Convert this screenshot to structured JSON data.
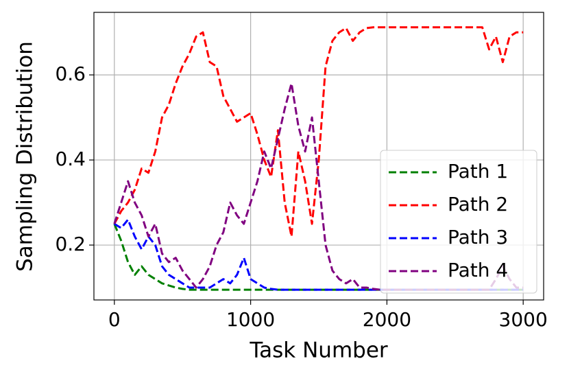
{
  "chart_data": {
    "type": "line",
    "xlabel": "Task Number",
    "ylabel": "Sampling Distribution",
    "x": [
      0,
      50,
      100,
      150,
      200,
      250,
      300,
      350,
      400,
      450,
      500,
      550,
      600,
      650,
      700,
      750,
      800,
      850,
      900,
      950,
      1000,
      1050,
      1100,
      1150,
      1200,
      1250,
      1300,
      1350,
      1400,
      1450,
      1500,
      1550,
      1600,
      1650,
      1700,
      1750,
      1800,
      1850,
      1900,
      1950,
      2000,
      2050,
      2100,
      2150,
      2200,
      2250,
      2300,
      2350,
      2400,
      2450,
      2500,
      2550,
      2600,
      2650,
      2700,
      2750,
      2800,
      2850,
      2900,
      2950,
      3000
    ],
    "series": [
      {
        "name": "Path 1",
        "color": "#008000",
        "values": [
          0.25,
          0.21,
          0.16,
          0.13,
          0.15,
          0.13,
          0.12,
          0.11,
          0.105,
          0.1,
          0.097,
          0.095,
          0.095,
          0.095,
          0.095,
          0.095,
          0.095,
          0.095,
          0.095,
          0.095,
          0.095,
          0.095,
          0.095,
          0.095,
          0.095,
          0.095,
          0.095,
          0.095,
          0.095,
          0.095,
          0.095,
          0.095,
          0.095,
          0.095,
          0.095,
          0.095,
          0.095,
          0.095,
          0.095,
          0.095,
          0.095,
          0.095,
          0.095,
          0.095,
          0.095,
          0.095,
          0.095,
          0.095,
          0.095,
          0.095,
          0.095,
          0.095,
          0.095,
          0.095,
          0.095,
          0.095,
          0.095,
          0.095,
          0.095,
          0.095,
          0.095
        ]
      },
      {
        "name": "Path 2",
        "color": "#ff0000",
        "values": [
          0.25,
          0.28,
          0.3,
          0.33,
          0.38,
          0.37,
          0.42,
          0.5,
          0.53,
          0.58,
          0.62,
          0.65,
          0.69,
          0.7,
          0.63,
          0.62,
          0.55,
          0.52,
          0.49,
          0.5,
          0.51,
          0.46,
          0.4,
          0.36,
          0.47,
          0.3,
          0.22,
          0.42,
          0.35,
          0.25,
          0.4,
          0.62,
          0.68,
          0.7,
          0.71,
          0.68,
          0.7,
          0.71,
          0.712,
          0.712,
          0.712,
          0.712,
          0.712,
          0.712,
          0.712,
          0.712,
          0.712,
          0.712,
          0.712,
          0.712,
          0.712,
          0.712,
          0.712,
          0.712,
          0.712,
          0.66,
          0.69,
          0.63,
          0.69,
          0.7,
          0.7
        ]
      },
      {
        "name": "Path 3",
        "color": "#0000ff",
        "values": [
          0.25,
          0.24,
          0.26,
          0.22,
          0.19,
          0.22,
          0.2,
          0.15,
          0.13,
          0.12,
          0.11,
          0.1,
          0.1,
          0.1,
          0.1,
          0.11,
          0.12,
          0.11,
          0.13,
          0.17,
          0.12,
          0.11,
          0.1,
          0.097,
          0.095,
          0.095,
          0.095,
          0.095,
          0.095,
          0.095,
          0.095,
          0.095,
          0.095,
          0.095,
          0.095,
          0.095,
          0.095,
          0.095,
          0.095,
          0.095,
          0.095,
          0.095,
          0.095,
          0.095,
          0.095,
          0.095,
          0.095,
          0.095,
          0.095,
          0.095,
          0.095,
          0.095,
          0.095,
          0.095,
          0.095,
          0.095,
          0.095,
          0.095,
          0.095,
          0.095,
          0.095
        ]
      },
      {
        "name": "Path 4",
        "color": "#800080",
        "values": [
          0.25,
          0.3,
          0.35,
          0.3,
          0.27,
          0.22,
          0.25,
          0.18,
          0.16,
          0.17,
          0.14,
          0.12,
          0.1,
          0.12,
          0.15,
          0.2,
          0.23,
          0.3,
          0.27,
          0.25,
          0.3,
          0.35,
          0.42,
          0.38,
          0.45,
          0.52,
          0.58,
          0.48,
          0.42,
          0.5,
          0.35,
          0.2,
          0.14,
          0.12,
          0.11,
          0.12,
          0.1,
          0.1,
          0.097,
          0.095,
          0.095,
          0.095,
          0.095,
          0.095,
          0.095,
          0.095,
          0.095,
          0.095,
          0.095,
          0.095,
          0.095,
          0.095,
          0.095,
          0.095,
          0.095,
          0.095,
          0.12,
          0.15,
          0.12,
          0.1,
          0.1
        ]
      }
    ],
    "xlim": [
      -150,
      3150
    ],
    "xticks": [
      0,
      1000,
      2000,
      3000
    ],
    "ylim": [
      0.071,
      0.747
    ],
    "yticks": [
      0.2,
      0.4,
      0.6
    ],
    "grid": true,
    "legend": "lower right"
  }
}
